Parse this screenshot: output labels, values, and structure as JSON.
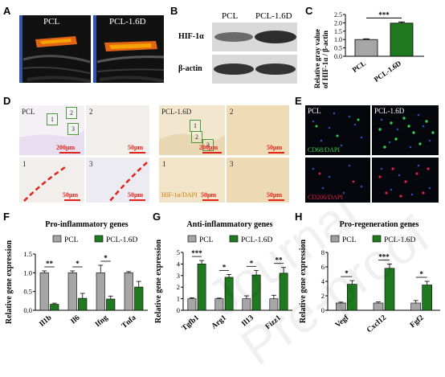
{
  "panels": {
    "A": {
      "label": "A",
      "left": "PCL",
      "right": "PCL-1.6D"
    },
    "B": {
      "label": "B",
      "col1": "PCL",
      "col2": "PCL-1.6D",
      "row1": "HIF-1α",
      "row2": "β-actin"
    },
    "C": {
      "label": "C",
      "ylabel1": "Relative gray value",
      "ylabel2": "of HIF-1α / β-actin",
      "sig": "***"
    },
    "D": {
      "label": "D",
      "group1": "PCL",
      "group2": "PCL-1.6D",
      "sub1": "1",
      "sub2": "2",
      "sub3": "3",
      "scale_low": "200μm",
      "scale_high": "50μm",
      "stain": "HIF-1α/DAPI"
    },
    "E": {
      "label": "E",
      "group1": "PCL",
      "group2": "PCL-1.6D",
      "stain_top": "CD68/DAPI",
      "stain_bottom": "CD206/DAPI"
    },
    "F": {
      "label": "F"
    },
    "G": {
      "label": "G"
    },
    "H": {
      "label": "H"
    }
  },
  "legend": {
    "a": "PCL",
    "b": "PCL-1.6D"
  },
  "colors": {
    "pcl": "#a6a6a6",
    "pcl16": "#1f7a1f",
    "sig": "#000000"
  },
  "watermark": "Journal Pre-proof",
  "chart_data": [
    {
      "panel": "C",
      "type": "bar",
      "categories": [
        "PCL",
        "PCL-1.6D"
      ],
      "values": [
        1.0,
        1.98
      ],
      "errors": [
        0.04,
        0.07
      ],
      "colors": [
        "#a6a6a6",
        "#1f7a1f"
      ],
      "ylim": [
        0,
        2.5
      ],
      "yticks": [
        0.0,
        0.5,
        1.0,
        1.5,
        2.0,
        2.5
      ],
      "ytick_labels": [
        "0.0",
        "0.5",
        "1.0",
        "1.5",
        "2.0",
        "2.5"
      ],
      "ylabel": "Relative gray value of HIF-1α / β-actin",
      "sig": [
        {
          "pair": [
            0,
            1
          ],
          "text": "***"
        }
      ]
    },
    {
      "panel": "F",
      "type": "bar",
      "title": "Pro-inflammatory genes",
      "ylabel": "Relative gene expression",
      "categories": [
        "Il1b",
        "Il6",
        "Ifng",
        "Tnfa"
      ],
      "ylim": [
        0,
        1.5
      ],
      "yticks": [
        0.0,
        0.5,
        1.0,
        1.5
      ],
      "ytick_labels": [
        "0.0",
        "0.5",
        "1.0",
        "1.5"
      ],
      "series": [
        {
          "name": "PCL",
          "values": [
            1.0,
            1.0,
            1.0,
            1.0
          ],
          "errors": [
            0.05,
            0.05,
            0.2,
            0.03
          ]
        },
        {
          "name": "PCL-1.6D",
          "values": [
            0.16,
            0.32,
            0.3,
            0.62
          ],
          "errors": [
            0.03,
            0.13,
            0.08,
            0.15
          ]
        }
      ],
      "sig": [
        "**",
        "*",
        "*",
        ""
      ]
    },
    {
      "panel": "G",
      "type": "bar",
      "title": "Anti-inflammatory genes",
      "ylabel": "Relative gene expression",
      "categories": [
        "Tgfb1",
        "Arg1",
        "Il13",
        "Fizz1"
      ],
      "ylim": [
        0,
        5
      ],
      "yticks": [
        0,
        1,
        2,
        3,
        4,
        5
      ],
      "ytick_labels": [
        "0",
        "1",
        "2",
        "3",
        "4",
        "5"
      ],
      "series": [
        {
          "name": "PCL",
          "values": [
            1.0,
            1.0,
            1.0,
            1.0
          ],
          "errors": [
            0.08,
            0.05,
            0.25,
            0.3
          ]
        },
        {
          "name": "PCL-1.6D",
          "values": [
            4.0,
            2.85,
            3.05,
            3.2
          ],
          "errors": [
            0.3,
            0.25,
            0.4,
            0.5
          ]
        }
      ],
      "sig": [
        "***",
        "*",
        "*",
        "**"
      ]
    },
    {
      "panel": "H",
      "type": "bar",
      "title": "Pro-regeneration genes",
      "ylabel": "Relative gene expression",
      "categories": [
        "Vegf",
        "Cxcl12",
        "Fgf2"
      ],
      "ylim": [
        0,
        8
      ],
      "yticks": [
        0,
        2,
        4,
        6,
        8
      ],
      "ytick_labels": [
        "0",
        "2",
        "4",
        "6",
        "8"
      ],
      "series": [
        {
          "name": "PCL",
          "values": [
            1.0,
            1.0,
            1.0
          ],
          "errors": [
            0.12,
            0.15,
            0.35
          ]
        },
        {
          "name": "PCL-1.6D",
          "values": [
            3.6,
            5.8,
            3.5
          ],
          "errors": [
            0.5,
            0.6,
            0.5
          ]
        }
      ],
      "sig": [
        "*",
        "***",
        "*"
      ]
    }
  ]
}
